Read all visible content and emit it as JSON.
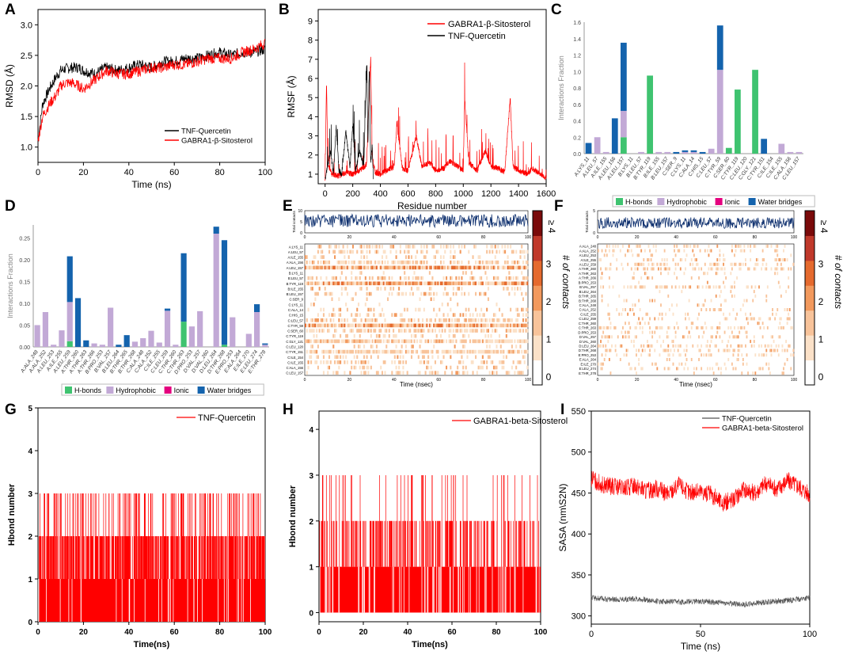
{
  "panel_labels": [
    "A",
    "B",
    "C",
    "D",
    "E",
    "F",
    "G",
    "H",
    "I"
  ],
  "chart_data": [
    {
      "id": "A",
      "type": "line",
      "xlabel": "Time (ns)",
      "ylabel": "RMSD (Å)",
      "xlim": [
        0,
        100
      ],
      "ylim": [
        0.75,
        3.25
      ],
      "xticks": [
        "0",
        "20",
        "40",
        "60",
        "80",
        "100"
      ],
      "yticks": [
        "1.0",
        "1.5",
        "2.0",
        "2.5",
        "3.0"
      ],
      "legend": "bottom-right",
      "series": [
        {
          "name": "TNF-Quercetin",
          "color": "#000000",
          "x": [
            0,
            2,
            5,
            8,
            10,
            12,
            15,
            18,
            20,
            25,
            30,
            35,
            40,
            45,
            50,
            55,
            60,
            65,
            70,
            75,
            80,
            85,
            90,
            95,
            100
          ],
          "y": [
            1.1,
            1.7,
            1.95,
            2.15,
            2.25,
            2.28,
            2.3,
            2.3,
            2.25,
            2.2,
            2.3,
            2.25,
            2.3,
            2.35,
            2.3,
            2.4,
            2.4,
            2.45,
            2.45,
            2.5,
            2.55,
            2.5,
            2.55,
            2.55,
            2.6
          ]
        },
        {
          "name": "GABRA1-β-Sitosterol",
          "color": "#ff0000",
          "x": [
            0,
            2,
            5,
            8,
            10,
            12,
            15,
            18,
            20,
            25,
            30,
            35,
            40,
            45,
            50,
            55,
            60,
            65,
            70,
            75,
            80,
            85,
            90,
            95,
            100
          ],
          "y": [
            1.1,
            1.5,
            1.7,
            1.85,
            2.0,
            2.05,
            2.05,
            2.0,
            1.95,
            2.1,
            2.25,
            2.2,
            2.2,
            2.25,
            2.3,
            2.3,
            2.35,
            2.35,
            2.4,
            2.45,
            2.45,
            2.45,
            2.55,
            2.6,
            2.7
          ]
        }
      ]
    },
    {
      "id": "B",
      "type": "line",
      "xlabel": "Residue number",
      "ylabel": "RMSF (Å)",
      "xlim": [
        -50,
        1600
      ],
      "ylim": [
        0.5,
        9.6
      ],
      "xticks": [
        "0",
        "200",
        "400",
        "600",
        "800",
        "1000",
        "1200",
        "1400",
        "1600"
      ],
      "yticks": [
        "1",
        "2",
        "3",
        "4",
        "5",
        "6",
        "7",
        "8",
        "9"
      ],
      "legend": "top-right",
      "series": [
        {
          "name": "GABRA1-β-Sitosterol",
          "color": "#ff0000",
          "x": [
            0,
            10,
            20,
            50,
            100,
            150,
            200,
            250,
            300,
            330,
            340,
            360,
            400,
            450,
            500,
            520,
            560,
            600,
            660,
            700,
            760,
            800,
            860,
            900,
            960,
            1000,
            1010,
            1040,
            1100,
            1160,
            1200,
            1260,
            1300,
            1340,
            1360,
            1400,
            1460,
            1500,
            1560,
            1600
          ],
          "y": [
            0.8,
            5.9,
            1.5,
            1.0,
            0.9,
            1.1,
            1.0,
            1.2,
            1.5,
            7.2,
            2.0,
            1.1,
            1.0,
            1.2,
            1.4,
            3.6,
            1.3,
            1.2,
            3.0,
            1.4,
            1.6,
            1.2,
            1.3,
            1.7,
            1.4,
            1.2,
            5.0,
            1.6,
            1.2,
            2.2,
            1.4,
            1.3,
            1.1,
            5.0,
            1.4,
            1.2,
            1.0,
            1.3,
            1.0,
            0.8
          ]
        },
        {
          "name": "TNF-Quercetin",
          "color": "#000000",
          "x": [
            0,
            20,
            40,
            60,
            80,
            100,
            120,
            150,
            180,
            200,
            220,
            250,
            280,
            300,
            310,
            320,
            330,
            340,
            350
          ],
          "y": [
            0.7,
            1.5,
            2.2,
            1.0,
            3.5,
            1.2,
            1.0,
            3.2,
            1.4,
            3.6,
            1.2,
            2.2,
            1.4,
            6.8,
            2.5,
            6.6,
            1.5,
            2.5,
            0.7
          ]
        }
      ]
    },
    {
      "id": "C",
      "type": "bar",
      "ylabel": "Interactions Fraction",
      "ylim": [
        0,
        1.6
      ],
      "yticks": [
        "0.0",
        "0.2",
        "0.4",
        "0.6",
        "0.8",
        "1.0",
        "1.2",
        "1.4",
        "1.6"
      ],
      "categories": [
        "A:LYS_11",
        "A:LEU_57",
        "A:ILE_155",
        "A:LEU_156",
        "A:LEU_157",
        "B:LYS_11",
        "B:LEU_57",
        "B:TYR_119",
        "B:ILE_155",
        "B:LEU_157",
        "C:SER_9",
        "C:LYS_11",
        "C:ALA_14",
        "C:HIS_15",
        "C:LEU_57",
        "C:TYR_59",
        "C:SER_60",
        "C:TYR_119",
        "C:LEU_120",
        "C:GLY_121",
        "C:TYR_151",
        "C:ILE_154",
        "C:ILE_155",
        "C:ALA_156",
        "C:LEU_157"
      ],
      "series": [
        {
          "name": "H-bonds",
          "color": "#3fc370",
          "values": [
            0,
            0,
            0,
            0,
            0.2,
            0,
            0,
            0.95,
            0,
            0,
            0,
            0,
            0,
            0,
            0,
            0,
            0.07,
            0.78,
            0,
            1.02,
            0,
            0,
            0,
            0,
            0
          ]
        },
        {
          "name": "Hydrophobic",
          "color": "#c2a9d6",
          "values": [
            0,
            0.2,
            0.02,
            0,
            0.32,
            0,
            0.02,
            0,
            0.02,
            0.02,
            0,
            0.02,
            0.02,
            0,
            0.06,
            1.02,
            0,
            0,
            0,
            0,
            0,
            0,
            0.12,
            0.02,
            0.02
          ]
        },
        {
          "name": "Ionic",
          "color": "#e4007e",
          "values": [
            0,
            0,
            0,
            0,
            0,
            0,
            0,
            0,
            0,
            0,
            0,
            0,
            0,
            0,
            0,
            0,
            0,
            0,
            0,
            0,
            0,
            0,
            0,
            0,
            0
          ]
        },
        {
          "name": "Water bridges",
          "color": "#1463ad",
          "values": [
            0.13,
            0,
            0,
            0.43,
            0.83,
            0,
            0,
            0,
            0,
            0,
            0.02,
            0.02,
            0.02,
            0.02,
            0,
            0.54,
            0,
            0,
            0,
            0,
            0.18,
            0,
            0,
            0,
            0
          ]
        }
      ]
    },
    {
      "id": "D",
      "type": "bar",
      "ylabel": "Interactions Fraction",
      "ylim": [
        0,
        0.28
      ],
      "yticks": [
        "0.00",
        "0.05",
        "0.10",
        "0.15",
        "0.20",
        "0.25"
      ],
      "categories": [
        "A:ALA_248",
        "A:ALA_252",
        "A:LEU_253",
        "A:ILE_255",
        "A:LEU_259",
        "A:THR_260",
        "A:THR_263",
        "A:THR_266",
        "B:PRO_253",
        "B:VAL_257",
        "B:LEU_264",
        "B:THR_265",
        "B:THR_268",
        "C:ALA_248",
        "C:ALA_252",
        "C:ILE_255",
        "C:LEU_259",
        "C:THR_260",
        "C:THR_263",
        "D:PRO_253",
        "D:VAL_257",
        "D:VAL_260",
        "D:LEU_264",
        "D:THR_268",
        "E:PRO_253",
        "E:ALA_264",
        "E:ILE_270",
        "E:LEU_274",
        "E:THR_278"
      ],
      "series": [
        {
          "name": "H-bonds",
          "color": "#3fc370",
          "values": [
            0,
            0,
            0,
            0,
            0.013,
            0,
            0,
            0,
            0,
            0,
            0,
            0,
            0,
            0,
            0,
            0,
            0,
            0,
            0.058,
            0,
            0,
            0,
            0,
            0.005,
            0,
            0,
            0,
            0,
            0
          ]
        },
        {
          "name": "Hydrophobic",
          "color": "#c2a9d6",
          "values": [
            0.05,
            0.08,
            0.005,
            0.038,
            0.09,
            0,
            0,
            0.008,
            0.005,
            0.09,
            0,
            0,
            0.012,
            0.02,
            0.037,
            0.01,
            0.083,
            0.005,
            0,
            0.047,
            0.082,
            0,
            0.26,
            0,
            0.068,
            0,
            0.03,
            0.08,
            0.005
          ]
        },
        {
          "name": "Ionic",
          "color": "#e4007e",
          "values": [
            0,
            0,
            0,
            0,
            0,
            0,
            0,
            0,
            0,
            0,
            0,
            0,
            0,
            0,
            0,
            0,
            0,
            0,
            0,
            0,
            0,
            0,
            0,
            0,
            0,
            0,
            0,
            0,
            0
          ]
        },
        {
          "name": "Water bridges",
          "color": "#1463ad",
          "values": [
            0,
            0,
            0,
            0,
            0.105,
            0.112,
            0.015,
            0,
            0,
            0,
            0.005,
            0.027,
            0,
            0,
            0,
            0,
            0.005,
            0,
            0.157,
            0,
            0,
            0,
            0.016,
            0.24,
            0,
            0,
            0,
            0.018,
            0.003
          ]
        }
      ]
    },
    {
      "id": "E",
      "type": "heatmap",
      "top_ylabel": "Total contacts",
      "top_yticks": [
        "0",
        "5",
        "10"
      ],
      "top_xticks": [
        "0",
        "20",
        "40",
        "60",
        "80",
        "100"
      ],
      "xlabel": "Time (nsec)",
      "xticks": [
        "0",
        "20",
        "40",
        "60",
        "80",
        "100"
      ],
      "colorbar_label": "# of contacts",
      "colorbar_ticks": [
        "0",
        "1",
        "2",
        "3",
        "≥ 4"
      ],
      "residues": [
        "A:LYS_11",
        "A:LEU_57",
        "A:ILE_155",
        "A:ALA_156",
        "A:LEU_157",
        "B:LYS_11",
        "B:LEU_57",
        "B:TYR_119",
        "B:ILE_155",
        "B:LEU_157",
        "C:SER_9",
        "C:LYS_11",
        "C:ALA_14",
        "C:HIS_15",
        "C:LEU_57",
        "C:TYR_59",
        "C:SER_60",
        "C:TYR_119",
        "C:GLY_121",
        "C:LEU_120",
        "C:TYR_151",
        "C:ILE_154",
        "C:ILE_155",
        "C:ALA_156",
        "C:LEU_157"
      ],
      "density": [
        0.4,
        0.35,
        0.2,
        0.6,
        0.95,
        0.1,
        0.4,
        0.95,
        0.2,
        0.3,
        0.1,
        0.1,
        0.25,
        0.3,
        0.45,
        0.95,
        0.6,
        0.2,
        0.75,
        0.2,
        0.8,
        0.3,
        0.35,
        0.25,
        0.3
      ]
    },
    {
      "id": "F",
      "type": "heatmap",
      "top_ylabel": "Total contacts",
      "top_yticks": [
        "0",
        "5"
      ],
      "top_xticks": [
        "0",
        "20",
        "40",
        "60",
        "80",
        "100"
      ],
      "xlabel": "Time (nsec)",
      "xticks": [
        "0",
        "20",
        "40",
        "60",
        "80",
        "100"
      ],
      "colorbar_label": "# of contacts",
      "colorbar_ticks": [
        "0",
        "1",
        "2",
        "3",
        "≥ 4"
      ],
      "residues": [
        "A:ALA_248",
        "A:ALA_252",
        "A:LEU_253",
        "A:ILE_255",
        "A:LEU_259",
        "A:THR_260",
        "A:THR_263",
        "A:THR_266",
        "B:PRO_253",
        "B:VAL_257",
        "B:LEU_264",
        "B:THR_265",
        "B:THR_268",
        "C:ALA_248",
        "C:ALA_252",
        "C:ILE_255",
        "C:LEU_259",
        "C:THR_260",
        "C:THR_263",
        "D:PRO_253",
        "D:VAL_257",
        "D:VAL_260",
        "D:LEU_264",
        "D:THR_268",
        "E:PRO_253",
        "E:ALA_264",
        "E:ILE_270",
        "E:LEU_274",
        "E:THR_278"
      ],
      "density": [
        0.25,
        0.3,
        0.1,
        0.2,
        0.35,
        0.3,
        0.1,
        0.1,
        0.05,
        0.3,
        0.05,
        0.1,
        0.1,
        0.1,
        0.1,
        0.1,
        0.2,
        0.1,
        0.3,
        0.15,
        0.25,
        0.1,
        0.4,
        0.35,
        0.25,
        0.1,
        0.15,
        0.2,
        0.1
      ]
    },
    {
      "id": "G",
      "type": "bar",
      "xlabel": "Time(ns)",
      "ylabel": "Hbond number",
      "xlim": [
        0,
        100
      ],
      "ylim": [
        0,
        5
      ],
      "xticks": [
        "0",
        "20",
        "40",
        "60",
        "80",
        "100"
      ],
      "yticks": [
        "0",
        "1",
        "2",
        "3",
        "4",
        "5"
      ],
      "legend": "top-right",
      "series": [
        {
          "name": "TNF-Quercetin",
          "color": "#ff0000",
          "value_range": [
            0,
            3
          ],
          "typical": [
            1,
            2
          ]
        }
      ]
    },
    {
      "id": "H",
      "type": "bar",
      "xlabel": "Time(ns)",
      "ylabel": "Hbond number",
      "xlim": [
        0,
        100
      ],
      "ylim": [
        -0.2,
        4.4
      ],
      "xticks": [
        "0",
        "20",
        "40",
        "60",
        "80",
        "100"
      ],
      "yticks": [
        "0",
        "1",
        "2",
        "3",
        "4"
      ],
      "legend": "top-right",
      "series": [
        {
          "name": "GABRA1-beta-Sitosterol",
          "color": "#ff0000",
          "value_range": [
            0,
            3
          ],
          "typical": [
            1,
            2
          ]
        }
      ]
    },
    {
      "id": "I",
      "type": "line",
      "xlabel": "Time (ns)",
      "ylabel": "SASA (nm\\S2N)",
      "xlim": [
        0,
        100
      ],
      "ylim": [
        290,
        550
      ],
      "xticks": [
        "0",
        "50",
        "100"
      ],
      "yticks": [
        "300",
        "350",
        "400",
        "450",
        "500",
        "550"
      ],
      "legend": "top-right",
      "series": [
        {
          "name": "TNF-Quercetin",
          "color": "#555555",
          "x": [
            0,
            10,
            20,
            30,
            40,
            50,
            60,
            70,
            80,
            90,
            100
          ],
          "y": [
            322,
            320,
            321,
            318,
            317,
            318,
            316,
            314,
            317,
            319,
            322
          ]
        },
        {
          "name": "GABRA1-beta-Sitosterol",
          "color": "#ff0000",
          "x": [
            0,
            5,
            10,
            15,
            20,
            25,
            30,
            35,
            40,
            45,
            50,
            55,
            60,
            65,
            70,
            75,
            80,
            85,
            90,
            95,
            100
          ],
          "y": [
            468,
            460,
            458,
            455,
            460,
            452,
            456,
            448,
            460,
            450,
            452,
            448,
            438,
            442,
            455,
            450,
            462,
            455,
            465,
            458,
            448
          ]
        }
      ]
    }
  ]
}
